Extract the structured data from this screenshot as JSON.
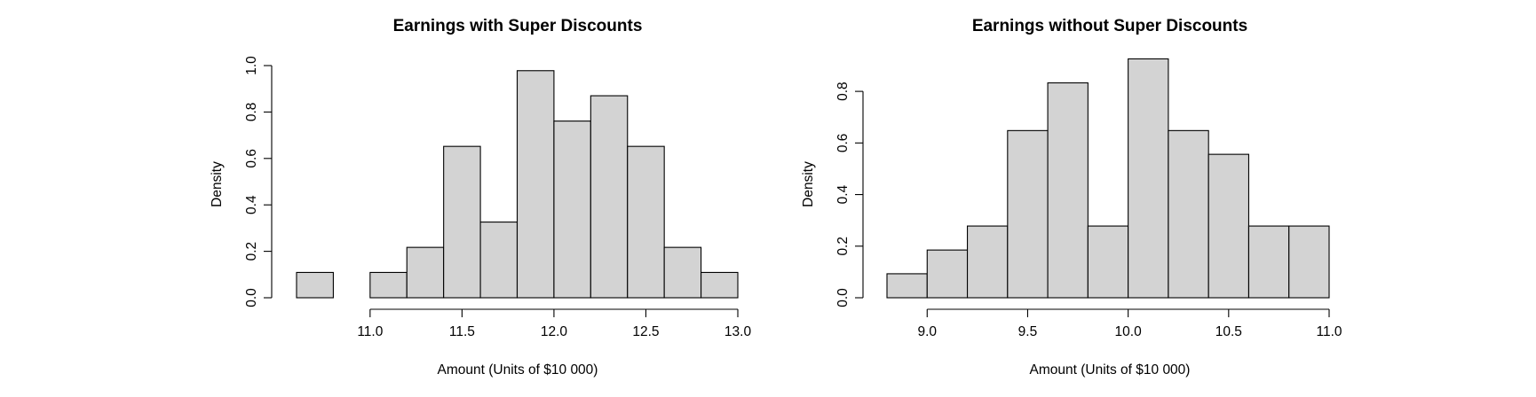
{
  "chart_data": [
    {
      "type": "bar",
      "subtype": "histogram",
      "title": "Earnings with Super Discounts",
      "xlabel": "Amount (Units of $10 000)",
      "ylabel": "Density",
      "bin_edges": [
        10.6,
        10.8,
        11.0,
        11.2,
        11.4,
        11.6,
        11.8,
        12.0,
        12.2,
        12.4,
        12.6,
        12.8,
        13.0
      ],
      "values": [
        0.109,
        0.0,
        0.109,
        0.217,
        0.652,
        0.326,
        0.978,
        0.761,
        0.87,
        0.652,
        0.217,
        0.109
      ],
      "xlim": [
        10.6,
        13.0
      ],
      "ylim": [
        0,
        1.0
      ],
      "xticks": [
        11.0,
        11.5,
        12.0,
        12.5,
        13.0
      ],
      "xtick_labels": [
        "11.0",
        "11.5",
        "12.0",
        "12.5",
        "13.0"
      ],
      "yticks": [
        0.0,
        0.2,
        0.4,
        0.6,
        0.8,
        1.0
      ],
      "ytick_labels": [
        "0.0",
        "0.2",
        "0.4",
        "0.6",
        "0.8",
        "1.0"
      ],
      "bar_color": "#d3d3d3",
      "grid": false
    },
    {
      "type": "bar",
      "subtype": "histogram",
      "title": "Earnings without Super Discounts",
      "xlabel": "Amount (Units of $10 000)",
      "ylabel": "Density",
      "bin_edges": [
        8.8,
        9.0,
        9.2,
        9.4,
        9.6,
        9.8,
        10.0,
        10.2,
        10.4,
        10.6,
        10.8,
        11.0
      ],
      "values": [
        0.093,
        0.185,
        0.278,
        0.648,
        0.833,
        0.278,
        0.926,
        0.648,
        0.556,
        0.278,
        0.278
      ],
      "xlim": [
        8.8,
        11.0
      ],
      "ylim": [
        0,
        0.9
      ],
      "xticks": [
        9.0,
        9.5,
        10.0,
        10.5,
        11.0
      ],
      "xtick_labels": [
        "9.0",
        "9.5",
        "10.0",
        "10.5",
        "11.0"
      ],
      "yticks": [
        0.0,
        0.2,
        0.4,
        0.6,
        0.8
      ],
      "ytick_labels": [
        "0.0",
        "0.2",
        "0.4",
        "0.6",
        "0.8"
      ],
      "bar_color": "#d3d3d3",
      "grid": false
    }
  ]
}
